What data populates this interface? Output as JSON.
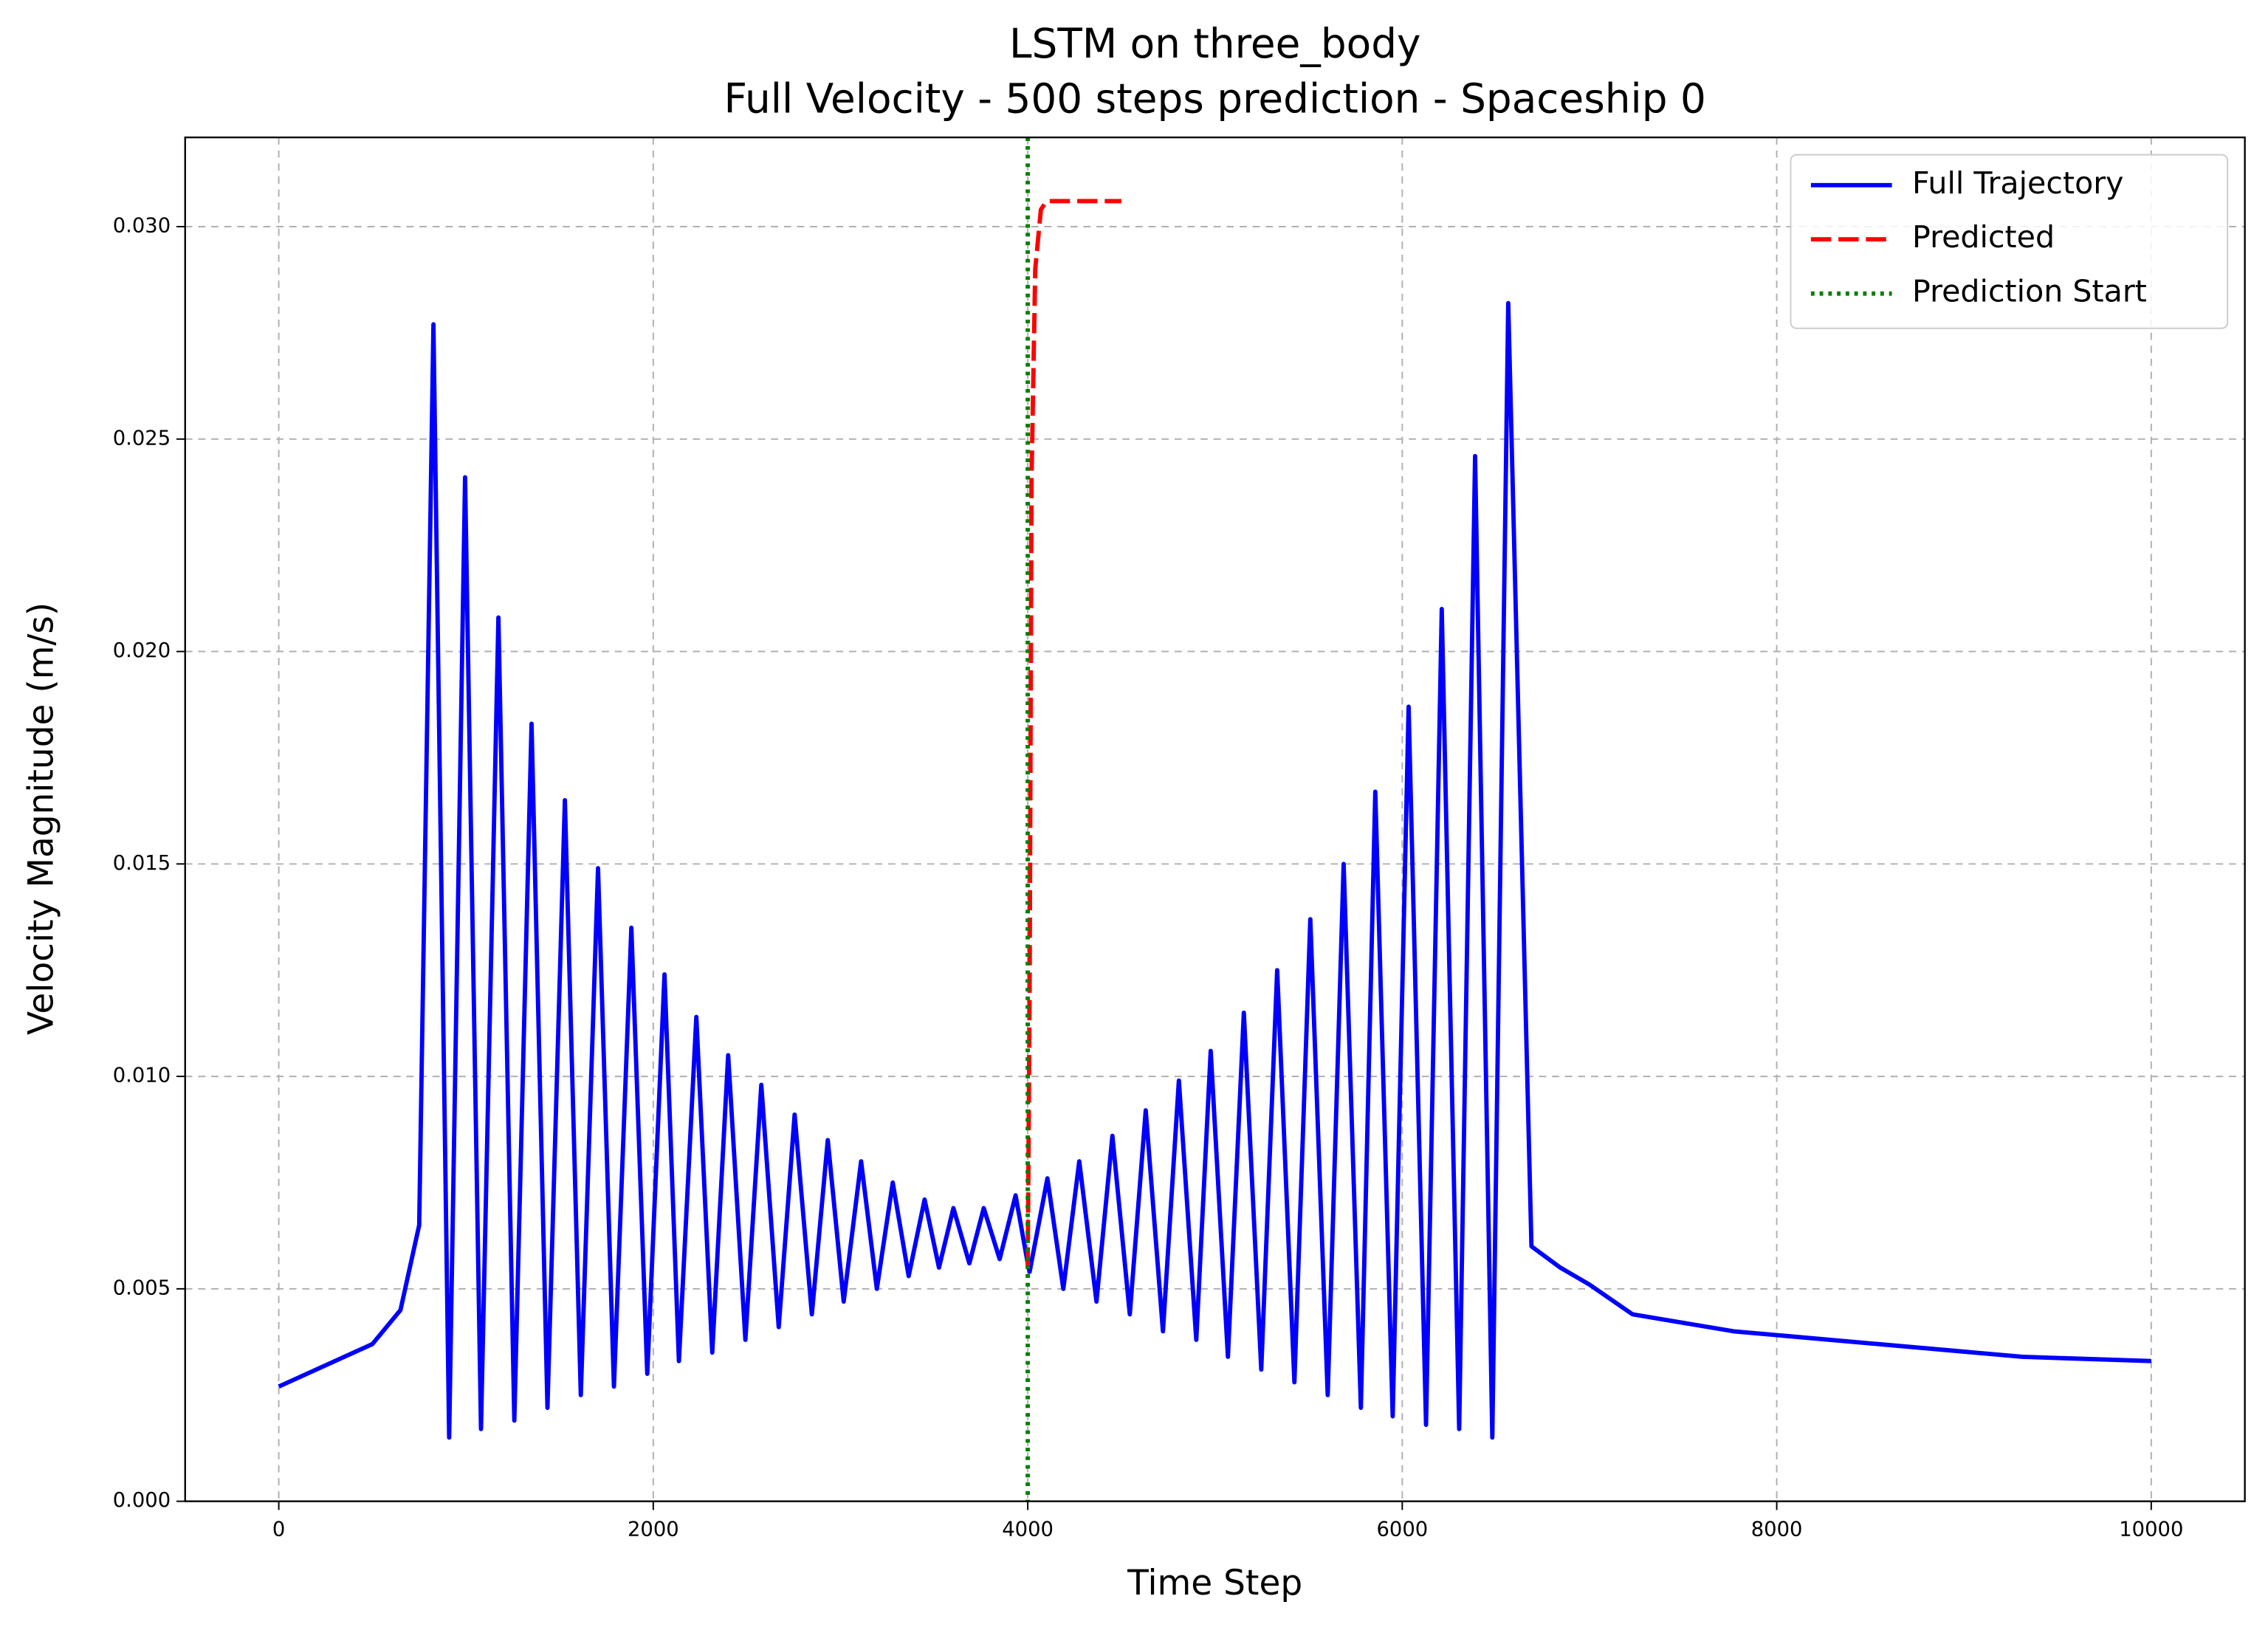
{
  "chart_data": {
    "type": "line",
    "title": "LSTM on three_body",
    "subtitle": "Full Velocity - 500 steps prediction - Spaceship 0",
    "xlabel": "Time Step",
    "ylabel": "Velocity Magnitude (m/s)",
    "xlim": [
      -500,
      10500
    ],
    "ylim": [
      0,
      0.0321
    ],
    "xticks": [
      0,
      2000,
      4000,
      6000,
      8000,
      10000
    ],
    "yticks": [
      {
        "value": 0,
        "label": "0.000"
      },
      {
        "value": 0.005,
        "label": "0.005"
      },
      {
        "value": 0.01,
        "label": "0.010"
      },
      {
        "value": 0.015,
        "label": "0.015"
      },
      {
        "value": 0.02,
        "label": "0.020"
      },
      {
        "value": 0.025,
        "label": "0.025"
      },
      {
        "value": 0.03,
        "label": "0.030"
      }
    ],
    "grid": true,
    "legend": "upper right",
    "series": [
      {
        "name": "Full Trajectory",
        "color": "#0000ff",
        "style": "solid",
        "x": [
          0,
          500,
          650,
          750,
          826,
          910,
          995,
          1080,
          1173,
          1258,
          1350,
          1435,
          1528,
          1613,
          1705,
          1790,
          1883,
          1968,
          2060,
          2137,
          2230,
          2315,
          2400,
          2492,
          2577,
          2670,
          2755,
          2847,
          2932,
          3017,
          3110,
          3194,
          3279,
          3364,
          3449,
          3526,
          3603,
          3688,
          3765,
          3850,
          3935,
          4000,
          4010,
          4105,
          4190,
          4275,
          4367,
          4452,
          4545,
          4630,
          4722,
          4807,
          4900,
          4977,
          5069,
          5154,
          5247,
          5332,
          5424,
          5509,
          5602,
          5687,
          5779,
          5856,
          5949,
          6034,
          6127,
          6211,
          6304,
          6389,
          6481,
          6566,
          6690,
          6844,
          7000,
          7230,
          7770,
          8542,
          9313,
          10000
        ],
        "values": [
          0.0027,
          0.0037,
          0.0045,
          0.0065,
          0.0277,
          0.0015,
          0.0241,
          0.0017,
          0.0208,
          0.0019,
          0.0183,
          0.0022,
          0.0165,
          0.0025,
          0.0149,
          0.0027,
          0.0135,
          0.003,
          0.0124,
          0.0033,
          0.0114,
          0.0035,
          0.0105,
          0.0038,
          0.0098,
          0.0041,
          0.0091,
          0.0044,
          0.0085,
          0.0047,
          0.008,
          0.005,
          0.0075,
          0.0053,
          0.0071,
          0.0055,
          0.0069,
          0.0056,
          0.0069,
          0.0057,
          0.0072,
          0.0056,
          0.0054,
          0.0076,
          0.005,
          0.008,
          0.0047,
          0.0086,
          0.0044,
          0.0092,
          0.004,
          0.0099,
          0.0038,
          0.0106,
          0.0034,
          0.0115,
          0.0031,
          0.0125,
          0.0028,
          0.0137,
          0.0025,
          0.015,
          0.0022,
          0.0167,
          0.002,
          0.0187,
          0.0018,
          0.021,
          0.0017,
          0.0246,
          0.0015,
          0.0282,
          0.006,
          0.0055,
          0.0051,
          0.0044,
          0.004,
          0.0037,
          0.0034,
          0.0033
        ]
      },
      {
        "name": "Predicted",
        "color": "#ff0000",
        "style": "dashed",
        "x": [
          4000,
          4010,
          4020,
          4040,
          4070,
          4100,
          4500
        ],
        "values": [
          0.0055,
          0.012,
          0.024,
          0.029,
          0.0304,
          0.0306,
          0.0306
        ]
      },
      {
        "name": "Prediction Start",
        "color": "#008000",
        "style": "dotted",
        "vertical": true,
        "x": [
          4000,
          4000
        ]
      }
    ]
  }
}
